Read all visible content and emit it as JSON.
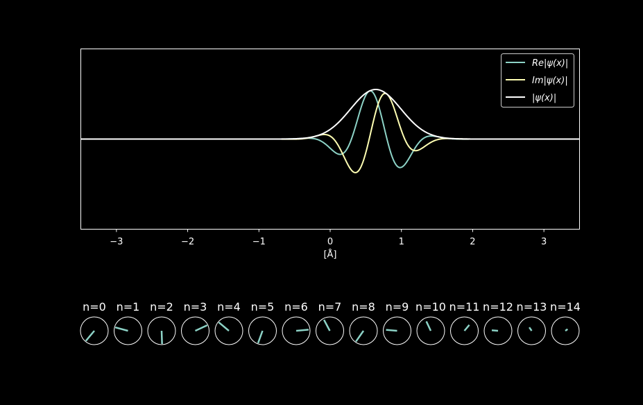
{
  "chart_data": {
    "type": "line",
    "title": "",
    "xlabel": "[Å]",
    "ylabel": "",
    "xlim": [
      -3.5,
      3.5
    ],
    "ylim": [
      -1.0,
      1.0
    ],
    "xticks": [
      -3,
      -2,
      -1,
      0,
      1,
      2,
      3
    ],
    "xtick_labels": [
      "−3",
      "−2",
      "−1",
      "0",
      "1",
      "2",
      "3"
    ],
    "wavepacket": {
      "center": 0.64,
      "width": 0.5,
      "wavenumber": 6.3,
      "phase": 0.58,
      "amplitude": 0.55
    },
    "series": [
      {
        "name": "Re|ψ(x)|",
        "component": "re",
        "color": "#8dd3c7"
      },
      {
        "name": "Im|ψ(x)|",
        "component": "im",
        "color": "#ffffb3"
      },
      {
        "name": "|ψ(x)|",
        "component": "abs",
        "color": "#ffffff"
      }
    ],
    "legend": {
      "placement": "top-right",
      "entries": [
        {
          "prefix": "Re",
          "core": "ψ(x)",
          "color": "#8dd3c7"
        },
        {
          "prefix": "Im",
          "core": "ψ(x)",
          "color": "#ffffb3"
        },
        {
          "prefix": "",
          "core": "ψ(x)",
          "color": "#ffffff"
        }
      ]
    }
  },
  "coefficients": {
    "color": "#8dd3c7",
    "items": [
      {
        "label": "n=0",
        "magnitude": 0.95,
        "angle_deg": 230
      },
      {
        "label": "n=1",
        "magnitude": 0.95,
        "angle_deg": 165
      },
      {
        "label": "n=2",
        "magnitude": 0.95,
        "angle_deg": 272
      },
      {
        "label": "n=3",
        "magnitude": 0.95,
        "angle_deg": 25
      },
      {
        "label": "n=4",
        "magnitude": 0.95,
        "angle_deg": 140
      },
      {
        "label": "n=5",
        "magnitude": 0.95,
        "angle_deg": 250
      },
      {
        "label": "n=6",
        "magnitude": 0.9,
        "angle_deg": 5
      },
      {
        "label": "n=7",
        "magnitude": 0.9,
        "angle_deg": 118
      },
      {
        "label": "n=8",
        "magnitude": 0.95,
        "angle_deg": 235
      },
      {
        "label": "n=9",
        "magnitude": 0.8,
        "angle_deg": 175
      },
      {
        "label": "n=10",
        "magnitude": 0.75,
        "angle_deg": 115
      },
      {
        "label": "n=11",
        "magnitude": 0.55,
        "angle_deg": 50
      },
      {
        "label": "n=12",
        "magnitude": 0.45,
        "angle_deg": 175
      },
      {
        "label": "n=13",
        "magnitude": 0.3,
        "angle_deg": 125
      },
      {
        "label": "n=14",
        "magnitude": 0.2,
        "angle_deg": 35
      }
    ]
  }
}
